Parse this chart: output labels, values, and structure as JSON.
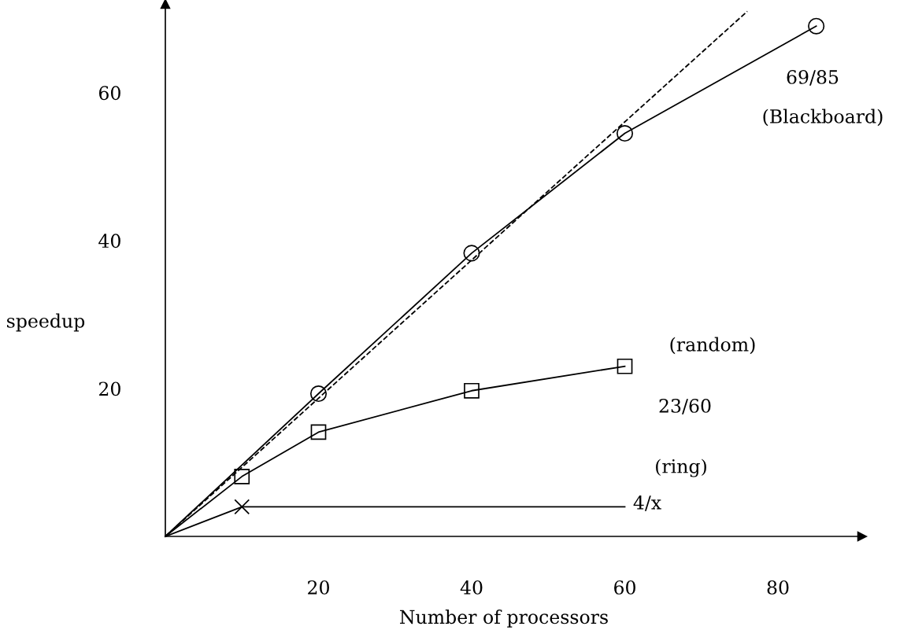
{
  "chart_data": {
    "type": "line",
    "xlabel": "Number of processors",
    "ylabel": "speedup",
    "xlim": [
      0,
      91
    ],
    "ylim": [
      0,
      72
    ],
    "xticks": [
      20,
      40,
      60,
      80
    ],
    "yticks": [
      20,
      40,
      60
    ],
    "grid": false,
    "legend": false,
    "series": [
      {
        "color": "#000000",
        "marker": "circle",
        "line_style": "solid",
        "x": [
          0,
          20,
          40,
          60,
          85
        ],
        "values": [
          0,
          19.3,
          38.3,
          54.5,
          69
        ]
      },
      {
        "color": "#000000",
        "marker": "square",
        "line_style": "solid",
        "x": [
          0,
          10,
          20,
          40,
          60
        ],
        "values": [
          0,
          8.1,
          14.1,
          19.7,
          23
        ]
      },
      {
        "color": "#000000",
        "marker": "cross",
        "line_style": "solid",
        "x": [
          0,
          10
        ],
        "values": [
          0,
          4
        ]
      },
      {
        "color": "#000000",
        "marker": "none",
        "line_style": "solid",
        "x": [
          10,
          60
        ],
        "values": [
          4,
          4
        ]
      },
      {
        "color": "#000000",
        "marker": "none",
        "line_style": "dashed",
        "x": [
          0,
          76
        ],
        "values": [
          0,
          71
        ]
      }
    ],
    "annotations": [
      "69/85",
      "(Blackboard)",
      "(random)",
      "23/60",
      "(ring)",
      "4/x"
    ]
  }
}
